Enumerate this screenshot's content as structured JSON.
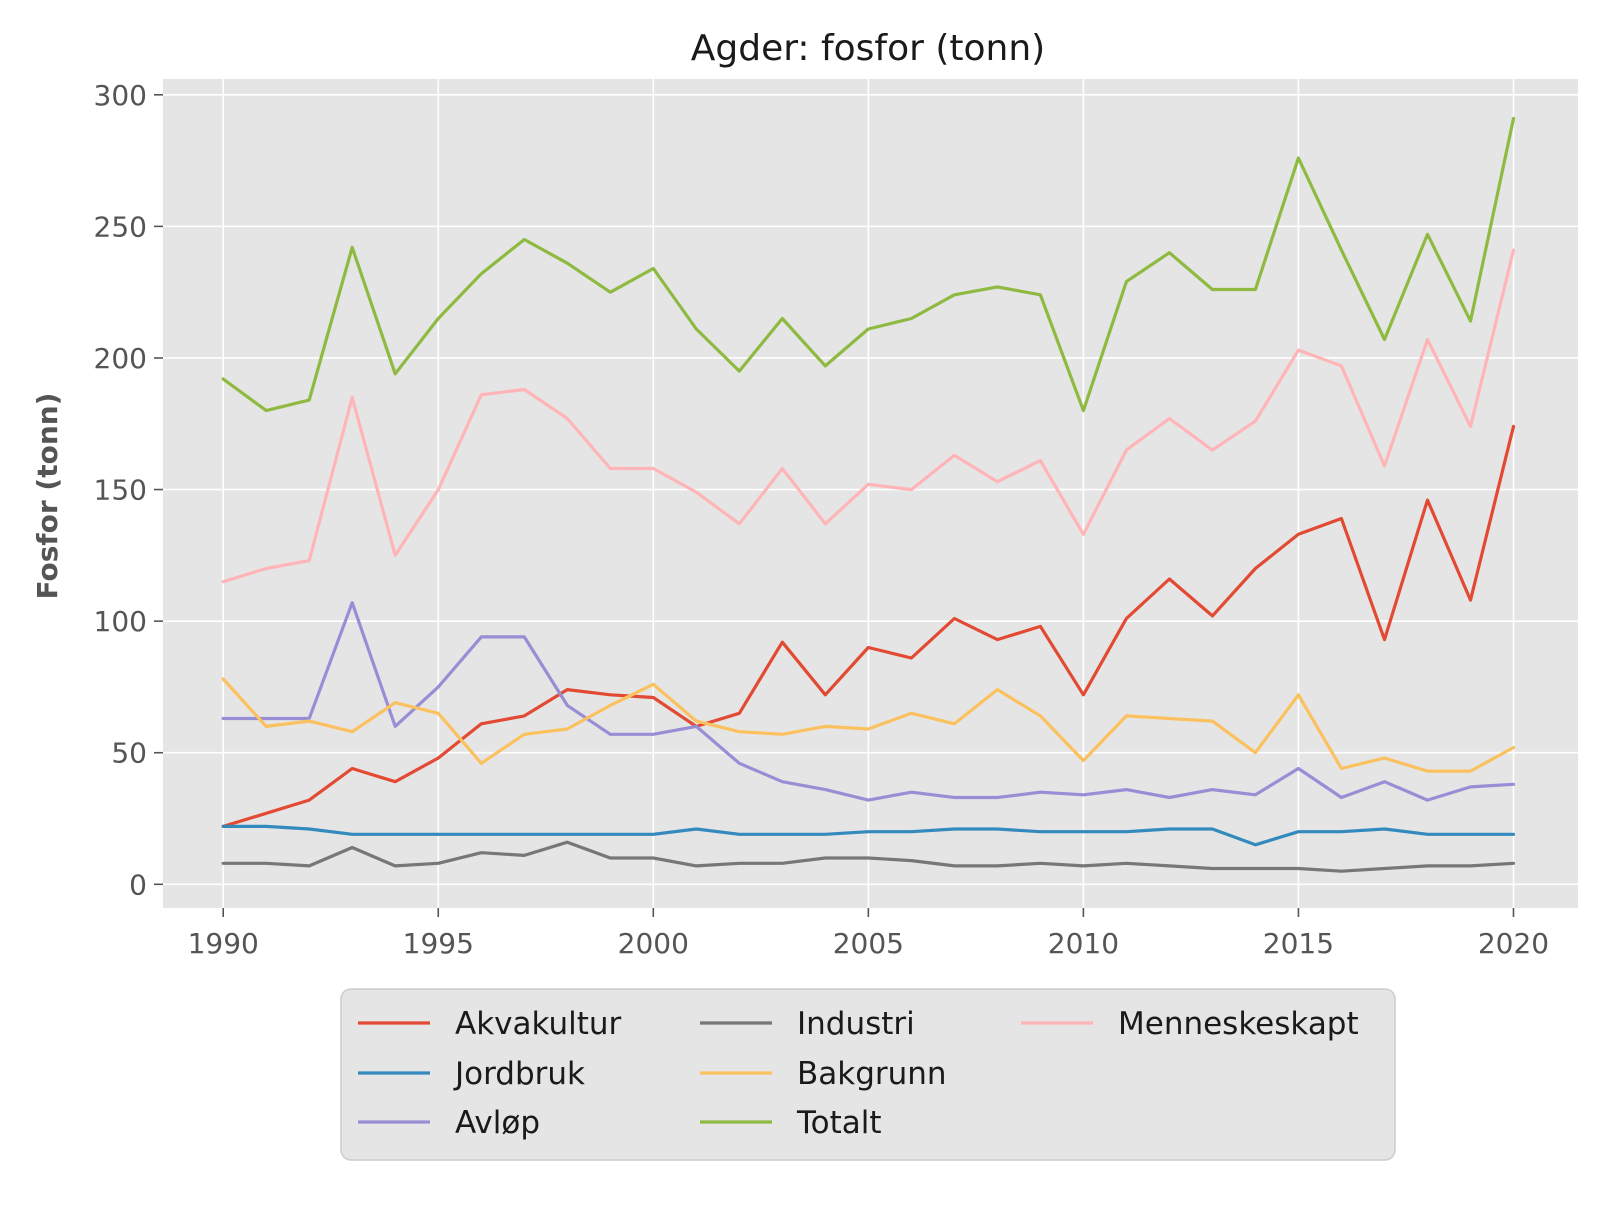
{
  "chart_data": {
    "type": "line",
    "title": "Agder: fosfor (tonn)",
    "xlabel": "",
    "ylabel": "Fosfor (tonn)",
    "xlim": [
      1988.6,
      2021.5
    ],
    "ylim": [
      -9,
      306
    ],
    "x_ticks": [
      1990,
      1995,
      2000,
      2005,
      2010,
      2015,
      2020
    ],
    "y_ticks": [
      0,
      50,
      100,
      150,
      200,
      250,
      300
    ],
    "grid": true,
    "legend_position": "bottom-center",
    "x": [
      1990,
      1991,
      1992,
      1993,
      1994,
      1995,
      1996,
      1997,
      1998,
      1999,
      2000,
      2001,
      2002,
      2003,
      2004,
      2005,
      2006,
      2007,
      2008,
      2009,
      2010,
      2011,
      2012,
      2013,
      2014,
      2015,
      2016,
      2017,
      2018,
      2019,
      2020
    ],
    "series": [
      {
        "name": "Akvakultur",
        "color": "#E24A33",
        "values": [
          22,
          27,
          32,
          44,
          39,
          48,
          61,
          64,
          74,
          72,
          71,
          60,
          65,
          92,
          72,
          90,
          86,
          101,
          93,
          98,
          72,
          101,
          116,
          102,
          120,
          133,
          139,
          93,
          146,
          108,
          174
        ]
      },
      {
        "name": "Jordbruk",
        "color": "#348ABD",
        "values": [
          22,
          22,
          21,
          19,
          19,
          19,
          19,
          19,
          19,
          19,
          19,
          21,
          19,
          19,
          19,
          20,
          20,
          21,
          21,
          20,
          20,
          20,
          21,
          21,
          15,
          20,
          20,
          21,
          19,
          19,
          19
        ]
      },
      {
        "name": "Avløp",
        "color": "#988ED5",
        "values": [
          63,
          63,
          63,
          107,
          60,
          75,
          94,
          94,
          68,
          57,
          57,
          60,
          46,
          39,
          36,
          32,
          35,
          33,
          33,
          35,
          34,
          36,
          33,
          36,
          34,
          44,
          33,
          39,
          32,
          37,
          38
        ]
      },
      {
        "name": "Industri",
        "color": "#777777",
        "values": [
          8,
          8,
          7,
          14,
          7,
          8,
          12,
          11,
          16,
          10,
          10,
          7,
          8,
          8,
          10,
          10,
          9,
          7,
          7,
          8,
          7,
          8,
          7,
          6,
          6,
          6,
          5,
          6,
          7,
          7,
          8
        ]
      },
      {
        "name": "Bakgrunn",
        "color": "#FBC15E",
        "values": [
          78,
          60,
          62,
          58,
          69,
          65,
          46,
          57,
          59,
          68,
          76,
          62,
          58,
          57,
          60,
          59,
          65,
          61,
          74,
          64,
          47,
          64,
          63,
          62,
          50,
          72,
          44,
          48,
          43,
          43,
          52
        ]
      },
      {
        "name": "Totalt",
        "color": "#8EBA42",
        "values": [
          192,
          180,
          184,
          242,
          194,
          215,
          232,
          245,
          236,
          225,
          234,
          211,
          195,
          215,
          197,
          211,
          215,
          224,
          227,
          224,
          180,
          229,
          240,
          226,
          226,
          276,
          241,
          207,
          247,
          214,
          291
        ]
      },
      {
        "name": "Menneskeskapt",
        "color": "#FFB5B8",
        "values": [
          115,
          120,
          123,
          185,
          125,
          150,
          186,
          188,
          177,
          158,
          158,
          149,
          137,
          158,
          137,
          152,
          150,
          163,
          153,
          161,
          133,
          165,
          177,
          165,
          176,
          203,
          197,
          159,
          207,
          174,
          241
        ]
      }
    ]
  }
}
